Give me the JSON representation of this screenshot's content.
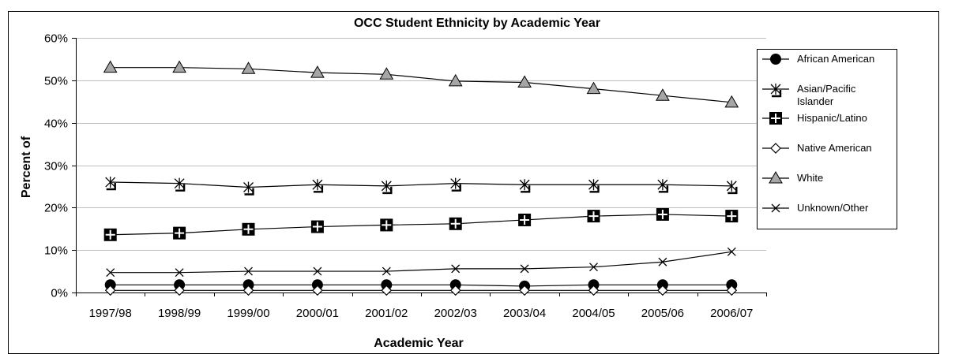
{
  "chart_data": {
    "type": "line",
    "title": "OCC Student Ethnicity by Academic Year",
    "xlabel": "Academic Year",
    "ylabel": "Percent of",
    "ylim": [
      0,
      0.6
    ],
    "y_ticks": [
      "0%",
      "10%",
      "20%",
      "30%",
      "40%",
      "50%",
      "60%"
    ],
    "grid": "horizontal",
    "legend_position": "right",
    "categories": [
      "1997/98",
      "1998/99",
      "1999/00",
      "2000/01",
      "2001/02",
      "2002/03",
      "2003/04",
      "2004/05",
      "2005/06",
      "2006/07"
    ],
    "series": [
      {
        "name": "African American",
        "marker": "circle",
        "values": [
          0.018,
          0.018,
          0.018,
          0.018,
          0.018,
          0.018,
          0.015,
          0.018,
          0.018,
          0.018
        ]
      },
      {
        "name": "Asian/Pacific Islander",
        "marker": "asterisk-bracket",
        "values": [
          0.26,
          0.257,
          0.248,
          0.254,
          0.251,
          0.257,
          0.254,
          0.254,
          0.254,
          0.251
        ]
      },
      {
        "name": "Hispanic/Latino",
        "marker": "plus-square",
        "values": [
          0.136,
          0.14,
          0.149,
          0.155,
          0.159,
          0.162,
          0.171,
          0.18,
          0.184,
          0.18
        ]
      },
      {
        "name": "Native American",
        "marker": "diamond",
        "values": [
          0.005,
          0.005,
          0.005,
          0.005,
          0.005,
          0.005,
          0.005,
          0.005,
          0.005,
          0.005
        ]
      },
      {
        "name": "White",
        "marker": "triangle",
        "values": [
          0.53,
          0.53,
          0.527,
          0.518,
          0.514,
          0.498,
          0.495,
          0.48,
          0.464,
          0.448
        ]
      },
      {
        "name": "Unknown/Other",
        "marker": "x",
        "values": [
          0.047,
          0.047,
          0.05,
          0.05,
          0.05,
          0.056,
          0.056,
          0.06,
          0.072,
          0.096
        ]
      }
    ]
  }
}
